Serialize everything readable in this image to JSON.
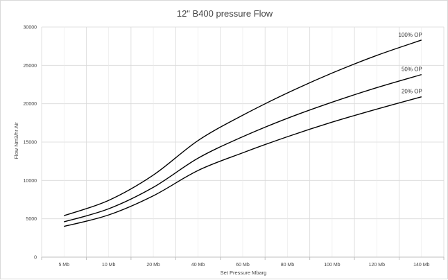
{
  "chart_data": {
    "type": "line",
    "title": "12\" B400 pressure Flow",
    "xlabel": "Set Pressure Mbarg",
    "ylabel": "Flow Nm3/hr Air",
    "categories": [
      "5 Mb",
      "10 Mb",
      "20 Mb",
      "40 Mb",
      "60 Mb",
      "80 Mb",
      "100 Mb",
      "120 Mb",
      "140 Mb"
    ],
    "ylim": [
      0,
      30000
    ],
    "yticks": [
      "0",
      "5000",
      "10000",
      "15000",
      "20000",
      "25000",
      "30000"
    ],
    "grid": true,
    "series": [
      {
        "name": "100% OP",
        "values": [
          5400,
          7400,
          10700,
          15200,
          18500,
          21400,
          24000,
          26300,
          28300
        ],
        "color": "#000000"
      },
      {
        "name": "50% OP",
        "values": [
          4600,
          6300,
          9100,
          12900,
          15700,
          18100,
          20200,
          22100,
          23800
        ],
        "color": "#000000"
      },
      {
        "name": "20% OP",
        "values": [
          4000,
          5500,
          8000,
          11300,
          13600,
          15700,
          17600,
          19300,
          20900
        ],
        "color": "#000000"
      }
    ]
  }
}
